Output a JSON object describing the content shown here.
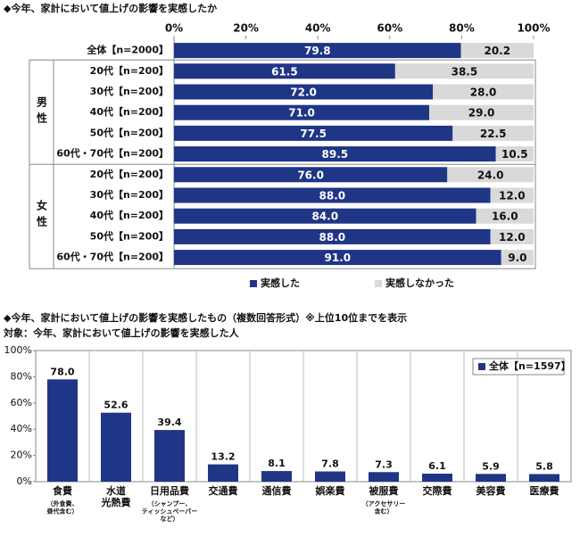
{
  "chart_data": [
    {
      "type": "hbar_stacked",
      "title": "◆今年、家計において値上げの影響を実感したか",
      "categories": [
        "全体【n=2000】",
        "20代【n=200】",
        "30代【n=200】",
        "40代【n=200】",
        "50代【n=200】",
        "60代・70代【n=200】",
        "20代【n=200】",
        "30代【n=200】",
        "40代【n=200】",
        "50代【n=200】",
        "60代・70代【n=200】"
      ],
      "group_labels": [
        "男性",
        "女性"
      ],
      "series": [
        {
          "name": "実感した",
          "color": "#1f3585",
          "values": [
            79.8,
            61.5,
            72.0,
            71.0,
            77.5,
            89.5,
            76.0,
            88.0,
            84.0,
            88.0,
            91.0
          ],
          "value_labels": [
            "79.8",
            "61.5",
            "72.0",
            "71.0",
            "77.5",
            "89.5",
            "76.0",
            "88.0",
            "84.0",
            "88.0",
            "91.0"
          ]
        },
        {
          "name": "実感しなかった",
          "color": "#d9d9d9",
          "values": [
            20.2,
            38.5,
            28.0,
            29.0,
            22.5,
            10.5,
            24.0,
            12.0,
            16.0,
            12.0,
            9.0
          ],
          "value_labels": [
            "20.2",
            "38.5",
            "28.0",
            "29.0",
            "22.5",
            "10.5",
            "24.0",
            "12.0",
            "16.0",
            "12.0",
            "9.0"
          ]
        }
      ],
      "xlim": [
        0,
        100
      ],
      "xticks": [
        {
          "value": 0,
          "label": "0%"
        },
        {
          "value": 20,
          "label": "20%"
        },
        {
          "value": 40,
          "label": "40%"
        },
        {
          "value": 60,
          "label": "60%"
        },
        {
          "value": 80,
          "label": "80%"
        },
        {
          "value": 100,
          "label": "100%"
        }
      ],
      "legend": "bottom"
    },
    {
      "type": "bar",
      "title": "◆今年、家計において値上げの影響を実感したもの（複数回答形式）※上位10位までを表示",
      "subtitle": "対象：今年、家計において値上げの影響を実感した人",
      "categories": [
        "食費",
        "水道\n光熱費",
        "日用品費",
        "交通費",
        "通信費",
        "娯楽費",
        "被服費",
        "交際費",
        "美容費",
        "医療費"
      ],
      "category_notes": [
        "（外食費、\n昼代含む）",
        null,
        "（シャンプー、\nティッシュペーパー\nなど）",
        null,
        null,
        null,
        "（アクセサリー\n含む）",
        null,
        null,
        null
      ],
      "series": [
        {
          "name": "全体【n=1597】",
          "color": "#1f3585",
          "values": [
            78.0,
            52.6,
            39.4,
            13.2,
            8.1,
            7.8,
            7.3,
            6.1,
            5.9,
            5.8
          ],
          "value_labels": [
            "78.0",
            "52.6",
            "39.4",
            "13.2",
            "8.1",
            "7.8",
            "7.3",
            "6.1",
            "5.9",
            "5.8"
          ]
        }
      ],
      "ylim": [
        0,
        100
      ],
      "yticks": [
        {
          "value": 0,
          "label": "0%"
        },
        {
          "value": 20,
          "label": "20%"
        },
        {
          "value": 40,
          "label": "40%"
        },
        {
          "value": 60,
          "label": "60%"
        },
        {
          "value": 80,
          "label": "80%"
        },
        {
          "value": 100,
          "label": "100%"
        }
      ],
      "legend": "top-right"
    }
  ]
}
